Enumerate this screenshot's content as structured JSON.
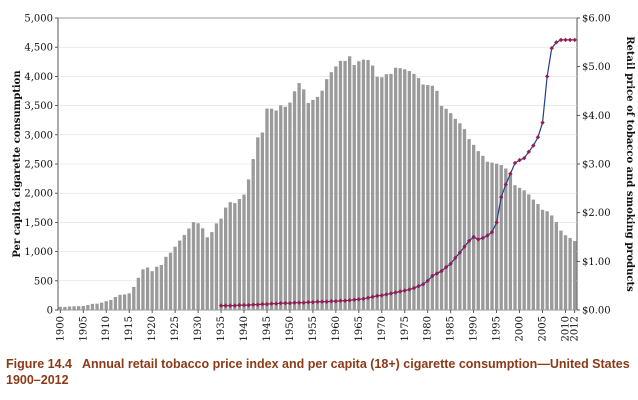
{
  "chart_data": {
    "type": "bar+line",
    "title": "",
    "ylabel_left": "Per capita cigarette consumption",
    "ylabel_right": "Retail price of tobacco and smoking products",
    "xlim": [
      1900,
      2012
    ],
    "ylim_left": [
      0,
      5000
    ],
    "ylim_right": [
      0,
      6
    ],
    "left_ticks": [
      "0",
      "500",
      "1,000",
      "1,500",
      "2,000",
      "2,500",
      "3,000",
      "3,500",
      "4,000",
      "4,500",
      "5,000"
    ],
    "right_ticks": [
      "$0.00",
      "$1.00",
      "$2.00",
      "$3.00",
      "$4.00",
      "$5.00",
      "$6.00"
    ],
    "x_tick_labels": [
      "1900",
      "1905",
      "1910",
      "1915",
      "1920",
      "1925",
      "1930",
      "1935",
      "1940",
      "1945",
      "1950",
      "1955",
      "1960",
      "1965",
      "1970",
      "1975",
      "1980",
      "1985",
      "1990",
      "1995",
      "2000",
      "2005",
      "2010",
      "2012"
    ],
    "consumption": {
      "name": "Per capita cigarette consumption",
      "color": "#9a9a9a",
      "years": [
        1900,
        1901,
        1902,
        1903,
        1904,
        1905,
        1906,
        1907,
        1908,
        1909,
        1910,
        1911,
        1912,
        1913,
        1914,
        1915,
        1916,
        1917,
        1918,
        1919,
        1920,
        1921,
        1922,
        1923,
        1924,
        1925,
        1926,
        1927,
        1928,
        1929,
        1930,
        1931,
        1932,
        1933,
        1934,
        1935,
        1936,
        1937,
        1938,
        1939,
        1940,
        1941,
        1942,
        1943,
        1944,
        1945,
        1946,
        1947,
        1948,
        1949,
        1950,
        1951,
        1952,
        1953,
        1954,
        1955,
        1956,
        1957,
        1958,
        1959,
        1960,
        1961,
        1962,
        1963,
        1964,
        1965,
        1966,
        1967,
        1968,
        1969,
        1970,
        1971,
        1972,
        1973,
        1974,
        1975,
        1976,
        1977,
        1978,
        1979,
        1980,
        1981,
        1982,
        1983,
        1984,
        1985,
        1986,
        1987,
        1988,
        1989,
        1990,
        1991,
        1992,
        1993,
        1994,
        1995,
        1996,
        1997,
        1998,
        1999,
        2000,
        2001,
        2002,
        2003,
        2004,
        2005,
        2006,
        2007,
        2008,
        2009,
        2010,
        2011,
        2012
      ],
      "values": [
        54,
        53,
        60,
        64,
        66,
        70,
        86,
        105,
        108,
        125,
        151,
        173,
        223,
        260,
        267,
        285,
        395,
        551,
        697,
        727,
        665,
        742,
        770,
        911,
        982,
        1085,
        1189,
        1285,
        1396,
        1504,
        1485,
        1399,
        1245,
        1334,
        1483,
        1564,
        1754,
        1847,
        1830,
        1900,
        1976,
        2236,
        2585,
        2956,
        3039,
        3449,
        3446,
        3416,
        3505,
        3480,
        3552,
        3744,
        3886,
        3778,
        3546,
        3597,
        3650,
        3755,
        3953,
        4073,
        4171,
        4266,
        4265,
        4345,
        4195,
        4259,
        4287,
        4280,
        4186,
        3993,
        3985,
        4037,
        4043,
        4148,
        4141,
        4122,
        4091,
        4043,
        3970,
        3861,
        3851,
        3840,
        3753,
        3494,
        3446,
        3370,
        3274,
        3197,
        3096,
        2926,
        2828,
        2720,
        2641,
        2539,
        2524,
        2505,
        2482,
        2423,
        2320,
        2136,
        2092,
        2049,
        1979,
        1890,
        1814,
        1716,
        1691,
        1619,
        1505,
        1360,
        1280,
        1232,
        1180
      ]
    },
    "price": {
      "name": "Retail price of tobacco and smoking products",
      "color": "#1f3f8f",
      "marker_color": "#9b1b4f",
      "years": [
        1935,
        1936,
        1937,
        1938,
        1939,
        1940,
        1941,
        1942,
        1943,
        1944,
        1945,
        1946,
        1947,
        1948,
        1949,
        1950,
        1951,
        1952,
        1953,
        1954,
        1955,
        1956,
        1957,
        1958,
        1959,
        1960,
        1961,
        1962,
        1963,
        1964,
        1965,
        1966,
        1967,
        1968,
        1969,
        1970,
        1971,
        1972,
        1973,
        1974,
        1975,
        1976,
        1977,
        1978,
        1979,
        1980,
        1981,
        1982,
        1983,
        1984,
        1985,
        1986,
        1987,
        1988,
        1989,
        1990,
        1991,
        1992,
        1993,
        1994,
        1995,
        1996,
        1997,
        1998,
        1999,
        2000,
        2001,
        2002,
        2003,
        2004,
        2005,
        2006,
        2007,
        2008,
        2009,
        2010,
        2011,
        2012
      ],
      "values": [
        0.09,
        0.09,
        0.09,
        0.09,
        0.1,
        0.1,
        0.1,
        0.11,
        0.11,
        0.12,
        0.12,
        0.13,
        0.13,
        0.14,
        0.14,
        0.14,
        0.15,
        0.15,
        0.15,
        0.16,
        0.16,
        0.17,
        0.17,
        0.17,
        0.18,
        0.18,
        0.19,
        0.19,
        0.2,
        0.21,
        0.22,
        0.23,
        0.25,
        0.27,
        0.29,
        0.3,
        0.32,
        0.34,
        0.36,
        0.38,
        0.4,
        0.42,
        0.45,
        0.49,
        0.53,
        0.6,
        0.7,
        0.75,
        0.8,
        0.88,
        0.95,
        1.07,
        1.18,
        1.3,
        1.42,
        1.5,
        1.45,
        1.48,
        1.53,
        1.6,
        1.8,
        2.32,
        2.58,
        2.8,
        3.02,
        3.08,
        3.12,
        3.25,
        3.38,
        3.55,
        3.85,
        4.8,
        5.38,
        5.5,
        5.55,
        5.55,
        5.55,
        5.55
      ]
    }
  },
  "caption": {
    "label": "Figure 14.4",
    "text": "Annual retail tobacco price index and per capita (18+) cigarette consumption—United States 1900–2012"
  }
}
